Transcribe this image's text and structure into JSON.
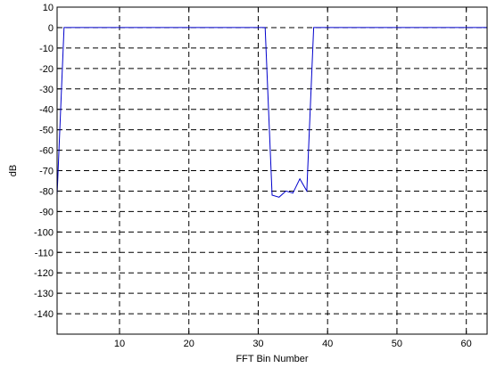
{
  "chart_data": {
    "type": "line",
    "title": "",
    "xlabel": "FFT Bin Number",
    "ylabel": "dB",
    "xlim": [
      1,
      63
    ],
    "ylim": [
      -150,
      10
    ],
    "xticks": [
      10,
      20,
      30,
      40,
      50,
      60
    ],
    "yticks": [
      10,
      0,
      -10,
      -20,
      -30,
      -40,
      -50,
      -60,
      -70,
      -80,
      -90,
      -100,
      -110,
      -120,
      -130,
      -140
    ],
    "grid": true,
    "line_color": "#0000cc",
    "series": [
      {
        "x": [
          1,
          2,
          3,
          31,
          32,
          33,
          34,
          35,
          36,
          37,
          38,
          39,
          63
        ],
        "values": [
          -82,
          0,
          0,
          0,
          -82,
          -83,
          -80,
          -81,
          -74,
          -80,
          0,
          0,
          0
        ]
      }
    ]
  }
}
